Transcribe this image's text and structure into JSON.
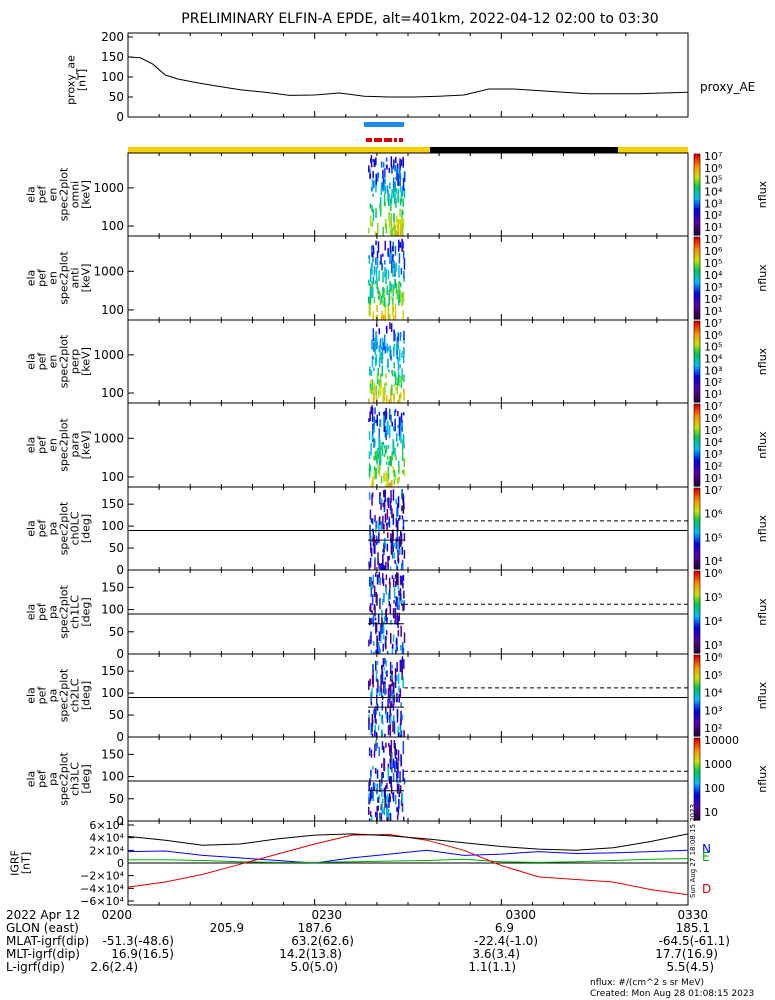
{
  "title": "PRELIMINARY ELFIN-A EPDE, alt=401km, 2022-04-12 02:00 to 03:30",
  "chart_data": [
    {
      "type": "line",
      "name": "proxy_ae",
      "ylabel_lines": [
        "proxy_ae",
        "[nT]"
      ],
      "legend": "proxy_AE",
      "ylim": [
        0,
        200
      ],
      "yticks": [
        "200",
        "150",
        "100",
        "50",
        "0"
      ],
      "x_minutes": [
        0,
        2,
        4,
        6,
        8,
        11,
        14,
        18,
        22,
        26,
        30,
        34,
        38,
        42,
        46,
        50,
        54,
        58,
        62,
        66,
        70,
        74,
        78,
        82,
        86,
        90
      ],
      "values": [
        150,
        148,
        132,
        105,
        95,
        86,
        78,
        68,
        62,
        54,
        55,
        60,
        52,
        50,
        50,
        52,
        55,
        70,
        70,
        66,
        62,
        58,
        58,
        58,
        60,
        62
      ]
    },
    {
      "type": "heatmap",
      "name": "omni",
      "ylabel_lines": [
        "ela",
        "pef",
        "en",
        "spec2plot",
        "omni",
        "[keV]"
      ],
      "yticks": [
        "1000",
        "100"
      ],
      "color_label": "nflux",
      "color_range": [
        1,
        10000000
      ],
      "colorbar_ticks": [
        "10⁷",
        "10⁶",
        "10⁵",
        "10⁴",
        "10³",
        "10²",
        "10¹"
      ]
    },
    {
      "type": "heatmap",
      "name": "anti",
      "ylabel_lines": [
        "ela",
        "pef",
        "en",
        "spec2plot",
        "anti",
        "[keV]"
      ],
      "yticks": [
        "1000",
        "100"
      ],
      "color_label": "nflux",
      "color_range": [
        1,
        10000000
      ],
      "colorbar_ticks": [
        "10⁷",
        "10⁶",
        "10⁵",
        "10⁴",
        "10³",
        "10²",
        "10¹"
      ]
    },
    {
      "type": "heatmap",
      "name": "perp",
      "ylabel_lines": [
        "ela",
        "pef",
        "en",
        "spec2plot",
        "perp",
        "[keV]"
      ],
      "yticks": [
        "1000",
        "100"
      ],
      "color_label": "nflux",
      "color_range": [
        1,
        10000000
      ],
      "colorbar_ticks": [
        "10⁷",
        "10⁶",
        "10⁵",
        "10⁴",
        "10³",
        "10²",
        "10¹"
      ]
    },
    {
      "type": "heatmap",
      "name": "para",
      "ylabel_lines": [
        "ela",
        "pef",
        "en",
        "spec2plot",
        "para",
        "[keV]"
      ],
      "yticks": [
        "1000",
        "100"
      ],
      "color_label": "nflux",
      "color_range": [
        1,
        10000000
      ],
      "colorbar_ticks": [
        "10⁷",
        "10⁶",
        "10⁵",
        "10⁴",
        "10³",
        "10²",
        "10¹"
      ]
    },
    {
      "type": "heatmap",
      "name": "ch0LC",
      "ylabel_lines": [
        "ela",
        "pef",
        "pa",
        "spec2plot",
        "ch0LC",
        "[deg]"
      ],
      "ylim": [
        0,
        180
      ],
      "yticks": [
        "150",
        "100",
        "50",
        "0"
      ],
      "color_label": "nflux",
      "colorbar_ticks": [
        "10⁷",
        "10⁶",
        "10⁵",
        "10⁴"
      ],
      "reference_line": 90
    },
    {
      "type": "heatmap",
      "name": "ch1LC",
      "ylabel_lines": [
        "ela",
        "pef",
        "pa",
        "spec2plot",
        "ch1LC",
        "[deg]"
      ],
      "ylim": [
        0,
        180
      ],
      "yticks": [
        "150",
        "100",
        "50",
        "0"
      ],
      "color_label": "nflux",
      "colorbar_ticks": [
        "10⁶",
        "10⁵",
        "10⁴",
        "10³"
      ],
      "reference_line": 90
    },
    {
      "type": "heatmap",
      "name": "ch2LC",
      "ylabel_lines": [
        "ela",
        "pef",
        "pa",
        "spec2plot",
        "ch2LC",
        "[deg]"
      ],
      "ylim": [
        0,
        180
      ],
      "yticks": [
        "150",
        "100",
        "50",
        "0"
      ],
      "color_label": "nflux",
      "colorbar_ticks": [
        "10⁶",
        "10⁵",
        "10⁴",
        "10³",
        "10²"
      ],
      "reference_line": 90
    },
    {
      "type": "heatmap",
      "name": "ch3LC",
      "ylabel_lines": [
        "ela",
        "pef",
        "pa",
        "spec2plot",
        "ch3LC",
        "[deg]"
      ],
      "ylim": [
        0,
        180
      ],
      "yticks": [
        "150",
        "100",
        "50",
        "0"
      ],
      "color_label": "nflux",
      "colorbar_ticks": [
        "10000",
        "1000",
        "100",
        "10"
      ],
      "reference_line": 90
    },
    {
      "type": "line",
      "name": "IGRF",
      "ylabel_lines": [
        "IGRF",
        "[nT]"
      ],
      "ylim": [
        -60000,
        60000
      ],
      "yticks": [
        "6×10⁴",
        "4×10⁴",
        "2×10⁴",
        "0",
        "−2×10⁴",
        "−4×10⁴",
        "−6×10⁴"
      ],
      "x_minutes": [
        0,
        6,
        12,
        18,
        24,
        30,
        36,
        42,
        48,
        54,
        60,
        66,
        72,
        78,
        84,
        90
      ],
      "series": [
        {
          "name": "N",
          "color": "#0000ff",
          "values": [
            18000,
            19000,
            12000,
            8000,
            4000,
            0,
            8000,
            14000,
            20000,
            12000,
            14000,
            18000,
            15000,
            16000,
            18000,
            20000
          ]
        },
        {
          "name": "E",
          "color": "#00aa00",
          "values": [
            5000,
            5000,
            4000,
            2000,
            1000,
            1000,
            2000,
            3000,
            4000,
            6000,
            2000,
            1000,
            2000,
            4000,
            6000,
            7000
          ]
        },
        {
          "name": "D",
          "color": "#dd0000",
          "values": [
            -38000,
            -30000,
            -18000,
            -2000,
            14000,
            30000,
            44000,
            45000,
            36000,
            20000,
            -4000,
            -22000,
            -26000,
            -30000,
            -42000,
            -50000
          ]
        },
        {
          "name": "",
          "color": "#000000",
          "values": [
            42000,
            36000,
            28000,
            30000,
            38000,
            44000,
            46000,
            43000,
            38000,
            32000,
            26000,
            22000,
            20000,
            24000,
            34000,
            46000
          ]
        }
      ]
    }
  ],
  "time_axis": {
    "ticks": [
      "0200",
      "0230",
      "0300",
      "0330"
    ]
  },
  "flags": {
    "blue_bar": "science zone (blue)",
    "red_bar": "science zone (red)"
  },
  "footer": {
    "date": "2022 Apr 12",
    "rows": [
      {
        "label": "GLON (east)",
        "values": [
          "205.9",
          "187.6",
          "6.9",
          "185.1"
        ]
      },
      {
        "label": "MLAT-igrf(dip)",
        "values": [
          "-51.3(-48.6)",
          "63.2(62.6)",
          "-22.4(-1.0)",
          "-64.5(-61.1)"
        ]
      },
      {
        "label": "MLT-igrf(dip)",
        "values": [
          "16.9(16.5)",
          "14.2(13.8)",
          "3.6(3.4)",
          "17.7(16.9)"
        ]
      },
      {
        "label": "L-igrf(dip)",
        "values": [
          "2.6(2.4)",
          "5.0(5.0)",
          "1.1(1.1)",
          "5.5(4.5)"
        ]
      }
    ],
    "units_note": "nflux: #/(cm^2 s sr MeV)",
    "created": "Created: Mon Aug 28 01:08:15 2023",
    "side_stamp": "Sun Aug 27 18:08:15 2023"
  }
}
